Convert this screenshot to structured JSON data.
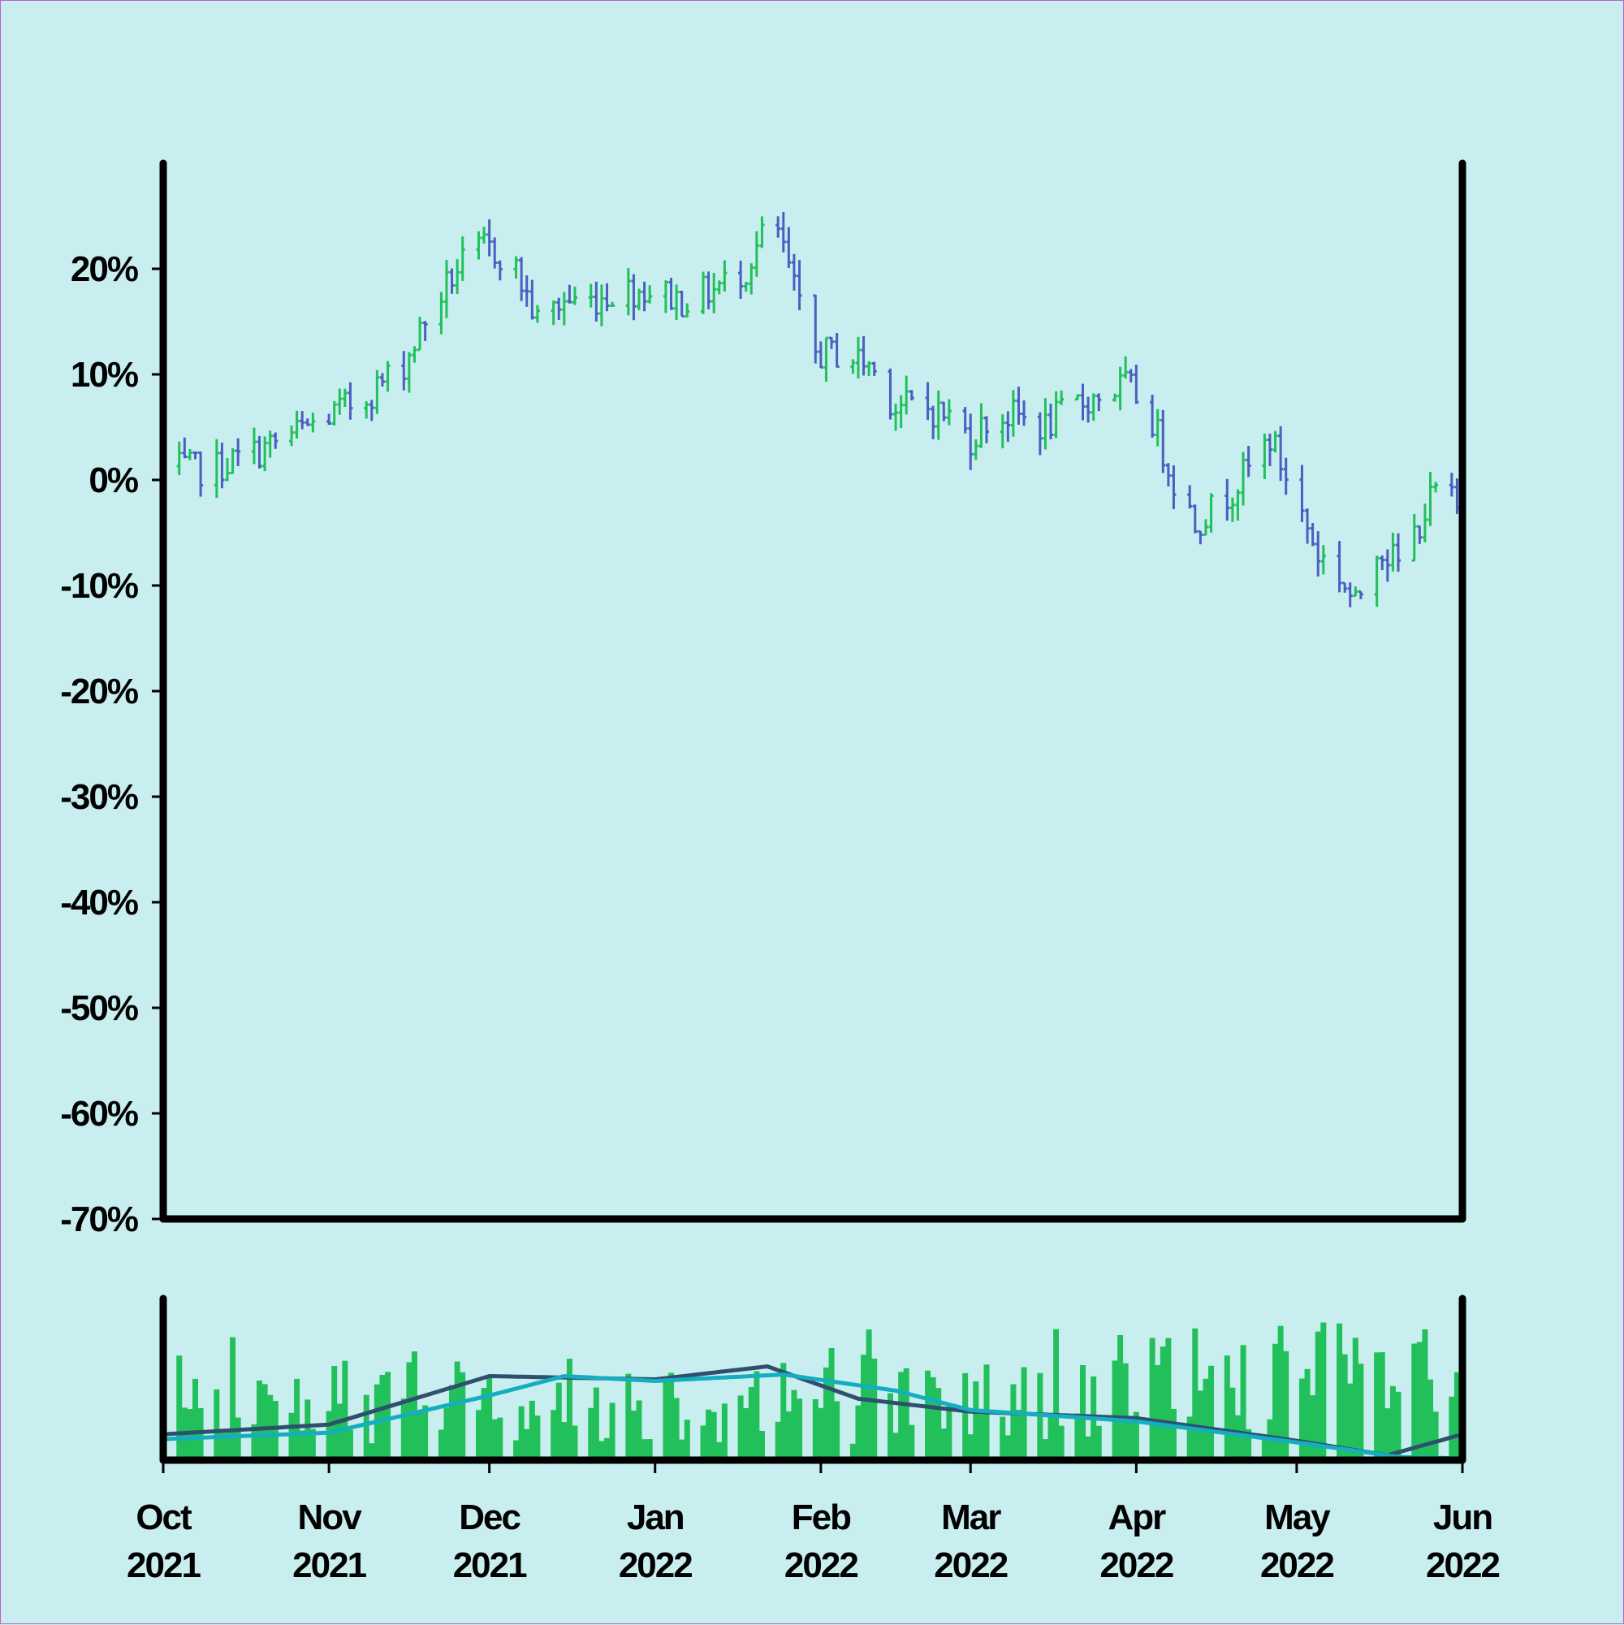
{
  "chart_data": [
    {
      "type": "ohlc",
      "title": "",
      "xlabel": "",
      "ylabel": "",
      "ylim": [
        -70,
        30
      ],
      "y_ticks": [
        20,
        10,
        0,
        -10,
        -20,
        -30,
        -40,
        -50,
        -60,
        -70
      ],
      "y_tick_labels": [
        "20%",
        "10%",
        "0%",
        "-10%",
        "-20%",
        "-30%",
        "-40%",
        "-50%",
        "-60%",
        "-70%"
      ],
      "xlim": [
        "2021-10-01",
        "2022-06-01"
      ],
      "x_ticks": [
        "2021-10-01",
        "2021-11-01",
        "2021-12-01",
        "2022-01-01",
        "2022-02-01",
        "2022-03-01",
        "2022-04-01",
        "2022-05-01",
        "2022-06-01"
      ],
      "x_tick_labels": [
        [
          "Oct",
          "2021"
        ],
        [
          "Nov",
          "2021"
        ],
        [
          "Dec",
          "2021"
        ],
        [
          "Jan",
          "2022"
        ],
        [
          "Feb",
          "2022"
        ],
        [
          "Mar",
          "2022"
        ],
        [
          "Apr",
          "2022"
        ],
        [
          "May",
          "2022"
        ],
        [
          "Jun",
          "2022"
        ]
      ],
      "grid": false,
      "colors": {
        "up": "#22c05a",
        "down": "#4a5fc1",
        "axes": "#000000",
        "background": "#c9eeef"
      },
      "series": [
        {
          "close_points": [
            [
              "2021-10-01",
              1
            ],
            [
              "2021-10-10",
              1
            ],
            [
              "2021-10-20",
              3
            ],
            [
              "2021-10-28",
              5
            ],
            [
              "2021-11-01",
              6
            ],
            [
              "2021-11-08",
              8
            ],
            [
              "2021-11-15",
              11
            ],
            [
              "2021-11-20",
              16
            ],
            [
              "2021-11-25",
              20
            ],
            [
              "2021-11-30",
              22
            ],
            [
              "2021-12-05",
              21
            ],
            [
              "2021-12-10",
              15
            ],
            [
              "2021-12-15",
              17
            ],
            [
              "2021-12-20",
              17
            ],
            [
              "2021-12-25",
              18
            ],
            [
              "2022-01-01",
              18
            ],
            [
              "2022-01-06",
              17
            ],
            [
              "2022-01-12",
              18
            ],
            [
              "2022-01-18",
              20
            ],
            [
              "2022-01-23",
              25
            ],
            [
              "2022-01-26",
              20
            ],
            [
              "2022-01-30",
              12
            ],
            [
              "2022-02-05",
              12
            ],
            [
              "2022-02-10",
              11
            ],
            [
              "2022-02-15",
              7
            ],
            [
              "2022-02-20",
              7
            ],
            [
              "2022-02-25",
              6
            ],
            [
              "2022-03-01",
              4
            ],
            [
              "2022-03-05",
              6
            ],
            [
              "2022-03-10",
              6
            ],
            [
              "2022-03-15",
              5
            ],
            [
              "2022-03-20",
              7
            ],
            [
              "2022-03-25",
              8
            ],
            [
              "2022-03-30",
              9
            ],
            [
              "2022-04-03",
              7
            ],
            [
              "2022-04-08",
              0
            ],
            [
              "2022-04-12",
              -4
            ],
            [
              "2022-04-17",
              -2
            ],
            [
              "2022-04-22",
              1
            ],
            [
              "2022-04-26",
              4
            ],
            [
              "2022-05-01",
              -2
            ],
            [
              "2022-05-05",
              -7
            ],
            [
              "2022-05-09",
              -9
            ],
            [
              "2022-05-12",
              -12
            ],
            [
              "2022-05-16",
              -6
            ],
            [
              "2022-05-20",
              -8
            ],
            [
              "2022-05-24",
              -4
            ],
            [
              "2022-05-28",
              0
            ],
            [
              "2022-05-31",
              -3
            ]
          ]
        }
      ]
    },
    {
      "type": "bar",
      "title": "",
      "xlabel": "",
      "ylabel": "",
      "ylim": [
        0,
        100
      ],
      "xlim": [
        "2021-10-01",
        "2022-06-01"
      ],
      "colors": {
        "bars": "#22c05a",
        "ma_fast": "#2f4f6f",
        "ma_slow": "#14aec0"
      },
      "series": [
        {
          "name": "",
          "points": [
            [
              "2021-10-01",
              16
            ],
            [
              "2021-11-01",
              22
            ],
            [
              "2021-12-01",
              52
            ],
            [
              "2022-01-01",
              50
            ],
            [
              "2022-01-22",
              58
            ],
            [
              "2022-02-08",
              38
            ],
            [
              "2022-03-01",
              30
            ],
            [
              "2022-04-01",
              26
            ],
            [
              "2022-05-01",
              12
            ],
            [
              "2022-05-18",
              3
            ],
            [
              "2022-06-01",
              16
            ]
          ]
        },
        {
          "name": "",
          "points": [
            [
              "2021-10-01",
              13
            ],
            [
              "2021-11-01",
              17
            ],
            [
              "2021-12-01",
              40
            ],
            [
              "2021-12-15",
              52
            ],
            [
              "2022-01-01",
              49
            ],
            [
              "2022-01-25",
              53
            ],
            [
              "2022-02-15",
              43
            ],
            [
              "2022-03-01",
              31
            ],
            [
              "2022-04-01",
              24
            ],
            [
              "2022-05-01",
              11
            ],
            [
              "2022-05-20",
              2
            ],
            [
              "2022-06-01",
              1
            ]
          ]
        }
      ]
    }
  ]
}
